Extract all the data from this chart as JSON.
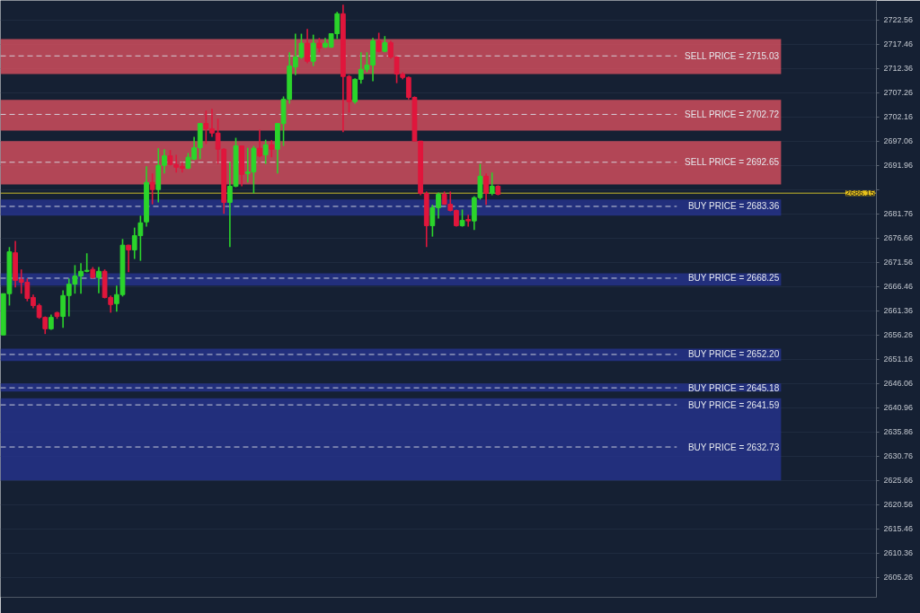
{
  "chart_data": {
    "type": "candlestick",
    "categories": [
      null,
      null,
      null,
      null,
      null,
      null,
      null,
      null,
      null,
      null,
      null,
      null,
      null,
      null,
      null,
      null,
      null,
      null,
      null,
      null,
      null,
      null,
      null,
      null,
      null,
      null,
      null,
      null,
      null,
      null,
      null,
      null,
      null,
      null,
      null,
      null,
      null,
      null,
      null,
      null,
      null,
      null,
      null,
      null,
      null,
      null,
      null,
      null,
      null,
      null,
      null,
      null,
      null,
      null,
      null,
      null,
      null,
      null,
      null,
      null,
      null,
      null,
      null,
      null,
      null,
      null,
      null,
      null,
      null,
      null,
      null,
      null,
      null,
      null,
      null,
      null,
      null,
      null,
      null,
      null,
      null,
      null,
      null,
      null,
      null,
      null,
      null,
      null,
      null,
      null,
      null,
      null,
      null,
      null,
      null,
      null,
      null,
      null,
      null,
      null,
      null,
      null,
      null,
      null,
      null,
      null,
      null,
      null,
      null,
      null,
      null,
      null,
      null,
      null,
      null,
      null,
      null,
      null,
      null,
      null,
      null,
      null,
      null,
      null,
      null,
      null,
      null,
      null,
      null,
      null,
      null,
      null,
      null,
      null,
      null,
      null,
      null,
      null,
      null,
      null,
      null,
      null,
      null,
      null,
      null,
      null,
      null
    ],
    "ohlc": [
      [
        2656.3,
        2665.0,
        2656.3,
        2665.0
      ],
      [
        2665.0,
        2674.8,
        2662.5,
        2673.8
      ],
      [
        2673.6,
        2676.1,
        2666.3,
        2667.8
      ],
      [
        2668.0,
        2670.1,
        2665.0,
        2667.4
      ],
      [
        2667.4,
        2668.2,
        2663.4,
        2664.0
      ],
      [
        2664.2,
        2664.8,
        2661.9,
        2662.5
      ],
      [
        2662.5,
        2662.9,
        2659.7,
        2660.0
      ],
      [
        2660.0,
        2660.2,
        2656.5,
        2657.6
      ],
      [
        2657.6,
        2660.6,
        2657.4,
        2660.0
      ],
      [
        2661.0,
        2661.2,
        2659.7,
        2660.2
      ],
      [
        2660.2,
        2665.7,
        2657.8,
        2664.6
      ],
      [
        2664.6,
        2668.2,
        2660.2,
        2667.0
      ],
      [
        2667.0,
        2671.0,
        2665.0,
        2668.7
      ],
      [
        2668.7,
        2671.4,
        2665.0,
        2669.7
      ],
      [
        2669.7,
        2673.5,
        2669.5,
        2669.9
      ],
      [
        2670.1,
        2670.6,
        2668.2,
        2668.4
      ],
      [
        2668.4,
        2670.6,
        2665.1,
        2669.7
      ],
      [
        2669.7,
        2670.1,
        2664.0,
        2664.2
      ],
      [
        2664.2,
        2664.6,
        2661.0,
        2662.7
      ],
      [
        2662.9,
        2666.7,
        2661.2,
        2664.8
      ],
      [
        2664.8,
        2676.5,
        2664.4,
        2675.2
      ],
      [
        2675.2,
        2675.3,
        2669.5,
        2674.2
      ],
      [
        2674.2,
        2678.9,
        2672.3,
        2677.2
      ],
      [
        2677.2,
        2681.4,
        2671.9,
        2679.9
      ],
      [
        2680.1,
        2691.8,
        2679.1,
        2688.4
      ],
      [
        2688.4,
        2690.3,
        2683.8,
        2686.9
      ],
      [
        2686.9,
        2695.6,
        2684.2,
        2692.0
      ],
      [
        2692.0,
        2695.4,
        2690.3,
        2694.0
      ],
      [
        2694.0,
        2695.2,
        2692.0,
        2692.2
      ],
      [
        2692.2,
        2694.2,
        2690.5,
        2691.6
      ],
      [
        2691.8,
        2692.7,
        2690.5,
        2691.4
      ],
      [
        2691.4,
        2694.6,
        2691.2,
        2693.7
      ],
      [
        2693.3,
        2698.0,
        2693.1,
        2695.7
      ],
      [
        2695.7,
        2700.8,
        2693.3,
        2700.8
      ],
      [
        2700.8,
        2703.5,
        2696.5,
        2699.7
      ],
      [
        2699.7,
        2703.9,
        2698.0,
        2698.8
      ],
      [
        2698.8,
        2701.8,
        2692.3,
        2695.4
      ],
      [
        2695.4,
        2695.6,
        2681.8,
        2684.2
      ],
      [
        2684.2,
        2692.7,
        2674.8,
        2687.6
      ],
      [
        2687.6,
        2697.8,
        2687.4,
        2696.1
      ],
      [
        2696.1,
        2696.1,
        2687.6,
        2690.1
      ],
      [
        2690.3,
        2695.7,
        2688.4,
        2690.6
      ],
      [
        2690.6,
        2696.1,
        2686.1,
        2695.6
      ],
      [
        2695.6,
        2699.5,
        2693.7,
        2694.0
      ],
      [
        2694.2,
        2697.4,
        2692.3,
        2696.3
      ],
      [
        2696.3,
        2697.3,
        2693.7,
        2695.4
      ],
      [
        2695.4,
        2700.8,
        2690.3,
        2700.8
      ],
      [
        2700.8,
        2706.5,
        2696.1,
        2705.9
      ],
      [
        2705.9,
        2715.8,
        2705.0,
        2712.9
      ],
      [
        2712.7,
        2719.7,
        2711.0,
        2714.8
      ],
      [
        2714.8,
        2719.7,
        2714.4,
        2717.7
      ],
      [
        2717.7,
        2720.7,
        2713.5,
        2713.9
      ],
      [
        2713.9,
        2719.5,
        2712.9,
        2717.7
      ],
      [
        2717.7,
        2718.8,
        2715.8,
        2716.7
      ],
      [
        2716.9,
        2718.8,
        2716.7,
        2717.7
      ],
      [
        2716.9,
        2719.7,
        2716.7,
        2719.7
      ],
      [
        2719.7,
        2724.3,
        2718.6,
        2723.9
      ],
      [
        2723.9,
        2725.8,
        2699.0,
        2710.7
      ],
      [
        2710.7,
        2711.0,
        2703.1,
        2705.4
      ],
      [
        2705.4,
        2710.3,
        2705.0,
        2710.1
      ],
      [
        2710.1,
        2715.8,
        2709.2,
        2712.2
      ],
      [
        2712.2,
        2715.8,
        2711.6,
        2713.1
      ],
      [
        2713.1,
        2718.8,
        2709.7,
        2718.2
      ],
      [
        2718.2,
        2719.9,
        2715.8,
        2716.0
      ],
      [
        2716.0,
        2719.2,
        2715.8,
        2717.8
      ],
      [
        2717.8,
        2718.2,
        2714.4,
        2714.8
      ],
      [
        2714.8,
        2715.0,
        2709.3,
        2711.2
      ],
      [
        2711.2,
        2711.6,
        2710.1,
        2710.5
      ],
      [
        2710.5,
        2710.7,
        2705.9,
        2706.3
      ],
      [
        2706.3,
        2706.5,
        2697.1,
        2697.1
      ],
      [
        2697.1,
        2697.1,
        2685.7,
        2686.1
      ],
      [
        2686.1,
        2686.5,
        2674.8,
        2679.3
      ],
      [
        2679.3,
        2683.7,
        2677.0,
        2683.1
      ],
      [
        2683.1,
        2686.3,
        2680.8,
        2685.9
      ],
      [
        2685.9,
        2686.5,
        2683.7,
        2683.8
      ],
      [
        2683.8,
        2686.5,
        2682.3,
        2682.5
      ],
      [
        2682.5,
        2682.7,
        2679.1,
        2679.3
      ],
      [
        2679.3,
        2682.7,
        2679.1,
        2680.4
      ],
      [
        2680.6,
        2681.6,
        2679.1,
        2680.3
      ],
      [
        2680.3,
        2685.5,
        2678.4,
        2685.2
      ],
      [
        2685.2,
        2692.3,
        2684.8,
        2689.7
      ],
      [
        2689.7,
        2690.3,
        2683.7,
        2686.1
      ],
      [
        2686.1,
        2690.5,
        2685.7,
        2687.6
      ],
      [
        2687.6,
        2687.8,
        2685.7,
        2685.9
      ],
      null,
      null,
      null,
      null,
      null,
      null,
      null,
      null,
      null,
      null,
      null,
      null,
      null,
      null,
      null,
      null,
      null,
      null,
      null,
      null,
      null,
      null,
      null,
      null,
      null,
      null,
      null,
      null,
      null,
      null,
      null,
      null,
      null,
      null,
      null,
      null,
      null,
      null,
      null,
      null,
      null,
      null,
      null,
      null,
      null,
      null,
      null,
      null,
      null,
      null,
      null,
      null,
      null,
      null,
      null,
      null,
      null,
      null,
      null,
      null,
      null,
      null,
      null
    ],
    "colors": [
      "#2bd42b",
      "#2bd42b",
      "#e0163c",
      "#e0163c",
      "#e0163c",
      "#e0163c",
      "#e0163c",
      "#e0163c",
      "#2bd42b",
      "#e0163c",
      "#2bd42b",
      "#2bd42b",
      "#2bd42b",
      "#2bd42b",
      "#2bd42b",
      "#e0163c",
      "#2bd42b",
      "#e0163c",
      "#e0163c",
      "#2bd42b",
      "#2bd42b",
      "#e0163c",
      "#2bd42b",
      "#2bd42b",
      "#2bd42b",
      "#e0163c",
      "#2bd42b",
      "#2bd42b",
      "#e0163c",
      "#e0163c",
      "#e0163c",
      "#2bd42b",
      "#2bd42b",
      "#2bd42b",
      "#e0163c",
      "#e0163c",
      "#e0163c",
      "#e0163c",
      "#2bd42b",
      "#2bd42b",
      "#e0163c",
      "#2bd42b",
      "#2bd42b",
      "#e0163c",
      "#2bd42b",
      "#e0163c",
      "#2bd42b",
      "#2bd42b",
      "#2bd42b",
      "#2bd42b",
      "#2bd42b",
      "#e0163c",
      "#2bd42b",
      "#e0163c",
      "#2bd42b",
      "#2bd42b",
      "#2bd42b",
      "#e0163c",
      "#e0163c",
      "#2bd42b",
      "#2bd42b",
      "#2bd42b",
      "#2bd42b",
      "#e0163c",
      "#2bd42b",
      "#e0163c",
      "#e0163c",
      "#e0163c",
      "#e0163c",
      "#e0163c",
      "#e0163c",
      "#e0163c",
      "#2bd42b",
      "#2bd42b",
      "#e0163c",
      "#e0163c",
      "#e0163c",
      "#2bd42b",
      "#e0163c",
      "#2bd42b",
      "#2bd42b",
      "#e0163c",
      "#2bd42b",
      "#e0163c",
      null,
      null,
      null,
      null,
      null,
      null,
      null,
      null,
      null,
      null,
      null,
      null,
      null,
      null,
      null,
      null,
      null,
      null,
      null,
      null,
      null,
      null,
      null,
      null,
      null,
      null,
      null,
      null,
      null,
      null,
      null,
      null,
      null,
      null,
      null,
      null,
      null,
      null,
      null,
      null,
      null,
      null,
      null,
      null,
      null,
      null,
      null,
      null,
      null,
      null,
      null,
      null,
      null,
      null,
      null,
      null,
      null,
      null,
      null,
      null,
      null,
      null,
      null
    ],
    "ylim": [
      2601.1,
      2726.7
    ],
    "yticks": [
      2722.56,
      2717.46,
      2712.36,
      2707.26,
      2702.16,
      2697.06,
      2691.96,
      {
        "value": 2686.86,
        "label": null
      },
      2681.76,
      2676.66,
      2671.56,
      2666.46,
      2661.36,
      2656.26,
      2651.16,
      2646.06,
      2640.96,
      2635.86,
      2630.76,
      2625.66,
      2620.56,
      2615.46,
      2610.36,
      2605.26
    ],
    "tick_labels": "y",
    "grid": "y",
    "bands": [
      {
        "axis": "y",
        "from": 2711.2,
        "to": 2718.6,
        "color": "#d9505f"
      },
      {
        "axis": "y",
        "from": 2699.3,
        "to": 2705.8,
        "color": "#d9505f"
      },
      {
        "axis": "y",
        "from": 2688.0,
        "to": 2697.1,
        "color": "#d9505f"
      },
      {
        "axis": "y",
        "from": 2681.4,
        "to": 2684.8,
        "color": "#26338f"
      },
      {
        "axis": "y",
        "from": 2666.7,
        "to": 2669.3,
        "color": "#26338f"
      },
      {
        "axis": "y",
        "from": 2650.8,
        "to": 2653.4,
        "color": "#26338f"
      },
      {
        "axis": "y",
        "from": 2644.4,
        "to": 2646.1,
        "color": "#26338f"
      },
      {
        "axis": "y",
        "from": 2625.7,
        "to": 2643.0,
        "color": "#26338f"
      }
    ],
    "ref_lines": [
      {
        "axis": "y",
        "value": 2715.03,
        "label": "SELL PRICE = 2715.03",
        "line_style": "dashed",
        "color": "#d8dce4"
      },
      {
        "axis": "y",
        "value": 2702.72,
        "label": "SELL PRICE = 2702.72",
        "line_style": "dashed",
        "color": "#d8dce4"
      },
      {
        "axis": "y",
        "value": 2692.65,
        "label": "SELL PRICE = 2692.65",
        "line_style": "dashed",
        "color": "#d8dce4"
      },
      {
        "axis": "y",
        "value": 2683.36,
        "label": "BUY PRICE = 2683.36",
        "line_style": "dashed",
        "color": "#d8dce4"
      },
      {
        "axis": "y",
        "value": 2668.25,
        "label": "BUY PRICE = 2668.25",
        "line_style": "dashed",
        "color": "#d8dce4"
      },
      {
        "axis": "y",
        "value": 2652.2,
        "label": "BUY PRICE = 2652.20",
        "line_style": "dashed",
        "color": "#d8dce4"
      },
      {
        "axis": "y",
        "value": 2645.18,
        "label": "BUY PRICE = 2645.18",
        "line_style": "dashed",
        "color": "#d8dce4"
      },
      {
        "axis": "y",
        "value": 2641.59,
        "label": "BUY PRICE = 2641.59",
        "line_style": "dashed",
        "color": "#d8dce4"
      },
      {
        "axis": "y",
        "value": 2632.73,
        "label": "BUY PRICE = 2632.73",
        "line_style": "dashed",
        "color": "#d8dce4"
      },
      {
        "axis": "y",
        "value": 2686.15,
        "label": "2686.15",
        "line_style": "solid",
        "color": "#c9b82a"
      }
    ]
  }
}
